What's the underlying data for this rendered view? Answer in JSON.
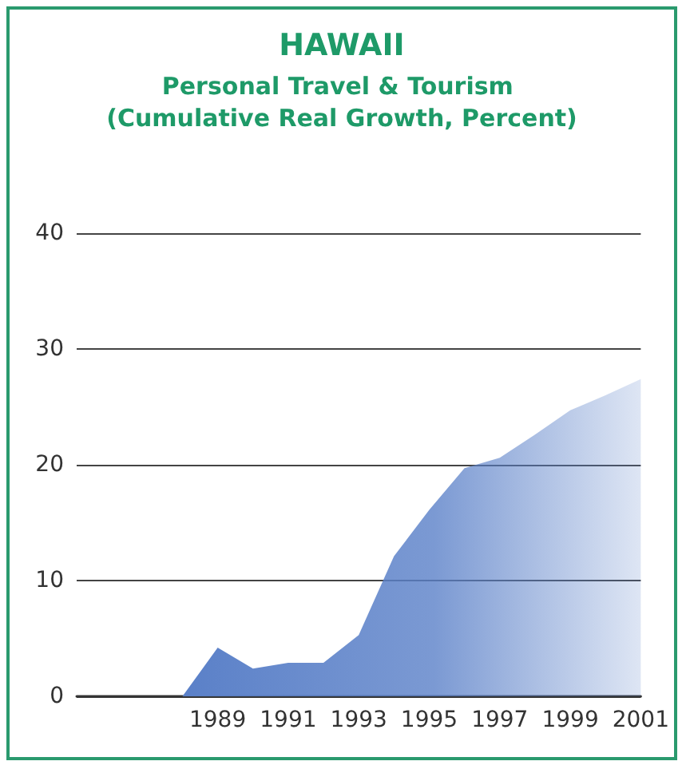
{
  "chart_data": {
    "type": "area",
    "title": "HAWAII",
    "subtitle": "Personal Travel & Tourism (Cumulative Real Growth, Percent)",
    "x": [
      1988,
      1989,
      1990,
      1991,
      1992,
      1993,
      1994,
      1995,
      1996,
      1997,
      1998,
      1999,
      2000,
      2001
    ],
    "series": [
      {
        "color": "#5a80c8",
        "values": [
          0,
          4.2,
          2.4,
          2.9,
          2.9,
          5.3,
          12.1,
          16.1,
          19.7,
          20.6,
          22.6,
          24.7,
          26.0,
          27.4
        ]
      }
    ],
    "xlim": [
      1985,
      2001
    ],
    "xticks": [
      1989,
      1991,
      1993,
      1995,
      1997,
      1999,
      2001
    ],
    "ylim": [
      0,
      40
    ],
    "yticks": [
      0,
      10,
      20,
      30,
      40
    ],
    "grid": "y",
    "marker": "none"
  }
}
